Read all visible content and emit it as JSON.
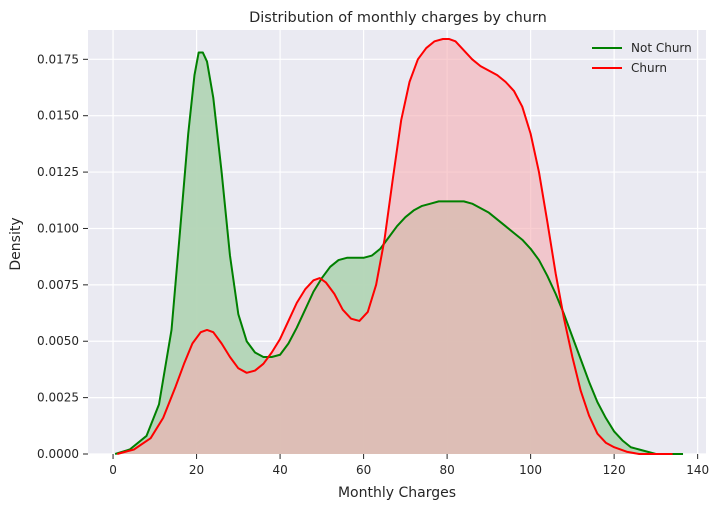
{
  "chart_data": {
    "type": "area",
    "title": "Distribution of monthly charges by churn",
    "xlabel": "Monthly Charges",
    "ylabel": "Density",
    "xlim": [
      -6,
      142
    ],
    "ylim": [
      0,
      0.0188
    ],
    "x_ticks": [
      0,
      20,
      40,
      60,
      80,
      100,
      120,
      140
    ],
    "x_tick_labels": [
      "0",
      "20",
      "40",
      "60",
      "80",
      "100",
      "120",
      "140"
    ],
    "y_ticks": [
      0,
      0.0025,
      0.005,
      0.0075,
      0.01,
      0.0125,
      0.015,
      0.0175
    ],
    "y_tick_labels": [
      "0.0000",
      "0.0025",
      "0.0050",
      "0.0075",
      "0.0100",
      "0.0125",
      "0.0150",
      "0.0175"
    ],
    "grid": true,
    "legend_position": "top-right",
    "series": [
      {
        "name": "Not Churn",
        "color": "#008000",
        "fill": "#b2d5b5",
        "x": [
          0.5,
          4,
          8,
          11,
          14,
          16,
          18,
          19.5,
          20.5,
          21.5,
          22.5,
          24,
          26,
          28,
          30,
          32,
          34,
          36,
          38,
          40,
          42,
          44,
          46,
          48,
          50,
          52,
          54,
          56,
          58,
          60,
          62,
          64,
          66,
          68,
          70,
          72,
          74,
          76,
          78,
          80,
          82,
          84,
          86,
          88,
          90,
          92,
          94,
          96,
          98,
          100,
          102,
          104,
          106,
          108,
          110,
          112,
          114,
          116,
          118,
          120,
          122,
          124,
          126,
          128,
          130,
          132,
          134,
          136.5
        ],
        "y": [
          0.0,
          0.0002,
          0.0008,
          0.0022,
          0.0055,
          0.0098,
          0.0142,
          0.0168,
          0.0178,
          0.0178,
          0.0174,
          0.0158,
          0.0125,
          0.0088,
          0.0062,
          0.005,
          0.0045,
          0.0043,
          0.0043,
          0.0044,
          0.0049,
          0.0056,
          0.0064,
          0.0072,
          0.0078,
          0.0083,
          0.0086,
          0.0087,
          0.0087,
          0.0087,
          0.0088,
          0.0091,
          0.0096,
          0.0101,
          0.0105,
          0.0108,
          0.011,
          0.0111,
          0.0112,
          0.0112,
          0.0112,
          0.0112,
          0.0111,
          0.0109,
          0.0107,
          0.0104,
          0.0101,
          0.0098,
          0.0095,
          0.0091,
          0.0086,
          0.0079,
          0.0071,
          0.0062,
          0.0052,
          0.0042,
          0.0032,
          0.0023,
          0.0016,
          0.001,
          0.0006,
          0.0003,
          0.0002,
          0.0001,
          0.0,
          0.0,
          0.0,
          0.0
        ]
      },
      {
        "name": "Churn",
        "color": "#ff0000",
        "fill": "#f5b0b5",
        "x": [
          1,
          5,
          9,
          12,
          15,
          17,
          19,
          21,
          22.5,
          24,
          26,
          28,
          30,
          32,
          34,
          36,
          38,
          40,
          42,
          44,
          46,
          48,
          49.5,
          51,
          53,
          55,
          57,
          59,
          61,
          63,
          65,
          67,
          69,
          71,
          73,
          75,
          77,
          79,
          80.5,
          82,
          84,
          86,
          88,
          90,
          92,
          94,
          96,
          98,
          100,
          102,
          104,
          106,
          108,
          110,
          112,
          114,
          116,
          118,
          120,
          123,
          126,
          130,
          134
        ],
        "y": [
          0.0,
          0.0002,
          0.0007,
          0.0016,
          0.003,
          0.004,
          0.0049,
          0.0054,
          0.0055,
          0.0054,
          0.0049,
          0.0043,
          0.0038,
          0.0036,
          0.0037,
          0.004,
          0.0045,
          0.0051,
          0.0059,
          0.0067,
          0.0073,
          0.0077,
          0.0078,
          0.0076,
          0.0071,
          0.0064,
          0.006,
          0.0059,
          0.0063,
          0.0075,
          0.0095,
          0.0122,
          0.0148,
          0.0165,
          0.0175,
          0.018,
          0.0183,
          0.0184,
          0.0184,
          0.0183,
          0.0179,
          0.0175,
          0.0172,
          0.017,
          0.0168,
          0.0165,
          0.0161,
          0.0154,
          0.0142,
          0.0125,
          0.0103,
          0.008,
          0.006,
          0.0043,
          0.0028,
          0.0017,
          0.0009,
          0.0005,
          0.0003,
          0.0001,
          0.0,
          0.0,
          0.0
        ]
      }
    ]
  },
  "colors": {
    "plot_background": "#eaeaf2",
    "grid": "#ffffff",
    "overlap_fill": "#c2a08a"
  }
}
